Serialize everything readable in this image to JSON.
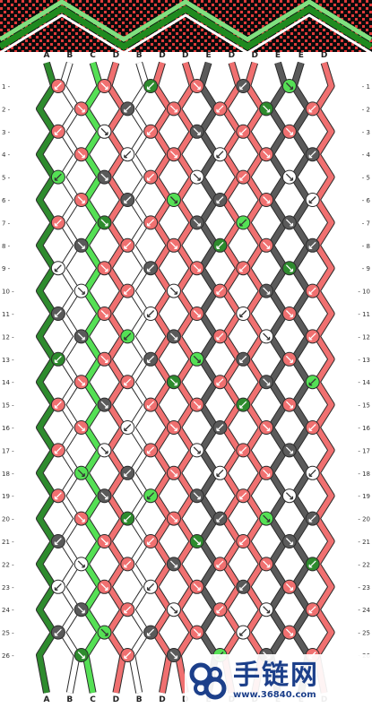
{
  "diagram": {
    "type": "friendship-bracelet-pattern",
    "strings_top": [
      "A",
      "B",
      "C",
      "D",
      "B",
      "D",
      "D",
      "E",
      "D",
      "D",
      "E",
      "E",
      "D"
    ],
    "strings_bottom": [
      "A",
      "B",
      "C",
      "D",
      "B",
      "D",
      "D",
      "E",
      "D",
      "D",
      "E",
      "E",
      "D"
    ],
    "row_count": 26,
    "colors": {
      "A": "#2e8b2e",
      "B": "#ffffff",
      "C": "#55e055",
      "D": "#f07070",
      "E": "#5a5a5a",
      "outline": "#2b2b2b",
      "banner_bg": "#0b0b0b",
      "banner_red": "#e03a3a",
      "banner_green": "#1f8a1f",
      "banner_light": "#7fe07f"
    }
  },
  "watermark": {
    "title": "手链网",
    "url": "www.36840.com"
  }
}
